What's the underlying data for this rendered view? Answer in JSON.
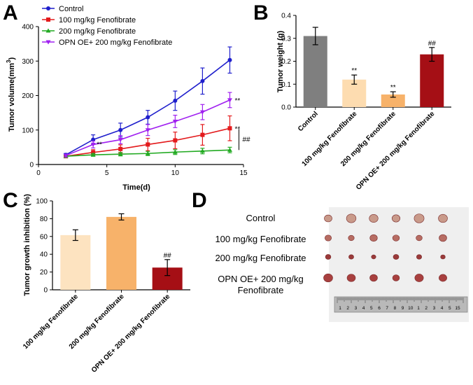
{
  "panels": {
    "a": "A",
    "b": "B",
    "c": "C",
    "d": "D"
  },
  "colors": {
    "control": "#1f1fcc",
    "fen100": "#e31a1c",
    "fen200": "#22aa22",
    "opn": "#a020f0",
    "bar_control": "#7f7f7f",
    "bar_fen100": "#fddcb0",
    "bar_fen200": "#f7b26a",
    "bar_opn": "#a50f15",
    "bar_c_fen100": "#fde3c0"
  },
  "chart_data": [
    {
      "id": "A",
      "type": "line",
      "xlabel": "Time(d)",
      "ylabel": "Tumor volume(mm³)",
      "ylabel_main": "Tumor volume(mm",
      "ylabel_sup": "3",
      "ylabel_end": ")",
      "xlim": [
        0,
        15
      ],
      "ylim": [
        0,
        400
      ],
      "xticks": [
        "0",
        "5",
        "10",
        "15"
      ],
      "yticks": [
        "0",
        "100",
        "200",
        "300",
        "400"
      ],
      "x": [
        2,
        4,
        6,
        8,
        10,
        12,
        14
      ],
      "series": [
        {
          "name": "Control",
          "marker": "circle",
          "values": [
            28,
            72,
            100,
            137,
            185,
            242,
            303
          ],
          "errors": [
            4,
            14,
            20,
            20,
            28,
            38,
            38
          ]
        },
        {
          "name": "100 mg/kg Fenofibrate",
          "marker": "square",
          "values": [
            24,
            35,
            45,
            58,
            70,
            86,
            105
          ],
          "errors": [
            4,
            8,
            12,
            18,
            24,
            30,
            36
          ]
        },
        {
          "name": "200 mg/kg Fenofibrate",
          "marker": "triangle",
          "values": [
            24,
            28,
            30,
            32,
            36,
            39,
            42
          ],
          "errors": [
            3,
            4,
            5,
            6,
            7,
            8,
            8
          ]
        },
        {
          "name": "OPN OE+ 200 mg/kg Fenofibrate",
          "marker": "triangle-down",
          "values": [
            26,
            58,
            72,
            100,
            125,
            152,
            187
          ],
          "errors": [
            4,
            10,
            12,
            16,
            18,
            22,
            22
          ]
        }
      ],
      "annotations": [
        "**",
        "**",
        "**",
        "##"
      ]
    },
    {
      "id": "B",
      "type": "bar",
      "ylabel": "Tumor weight (g)",
      "ylim": [
        0,
        0.4
      ],
      "yticks": [
        "0.0",
        "0.1",
        "0.2",
        "0.3",
        "0.4"
      ],
      "categories": [
        "Control",
        "100 mg/kg Fenofibrate",
        "200 mg/kg Fenofibrate",
        "OPN OE+ 200 mg/kg Fenofibrate"
      ],
      "values": [
        0.31,
        0.12,
        0.055,
        0.23
      ],
      "errors": [
        0.038,
        0.02,
        0.012,
        0.03
      ],
      "annotations": [
        "",
        "**",
        "**",
        "##"
      ]
    },
    {
      "id": "C",
      "type": "bar",
      "ylabel": "Tumor growth inhibition (%)",
      "ylim": [
        0,
        100
      ],
      "yticks": [
        "0",
        "20",
        "40",
        "60",
        "80",
        "100"
      ],
      "categories": [
        "100 mg/kg Fenofibrate",
        "200 mg/kg Fenofibrate",
        "OPN OE+ 200 mg/kg Fenofibrate"
      ],
      "values": [
        61.5,
        82,
        25
      ],
      "errors": [
        6,
        3.5,
        9
      ],
      "annotations": [
        "",
        "",
        "##"
      ]
    }
  ],
  "photo": {
    "labels": [
      "Control",
      "100 mg/kg Fenofibrate",
      "200 mg/kg Fenofibrate",
      "OPN OE+ 200 mg/kg Fenofibrate"
    ],
    "ruler_numbers": [
      "1",
      "2",
      "3",
      "4",
      "5",
      "6",
      "7",
      "8",
      "9",
      "10",
      "1",
      "2",
      "3",
      "4",
      "5",
      "15"
    ]
  }
}
